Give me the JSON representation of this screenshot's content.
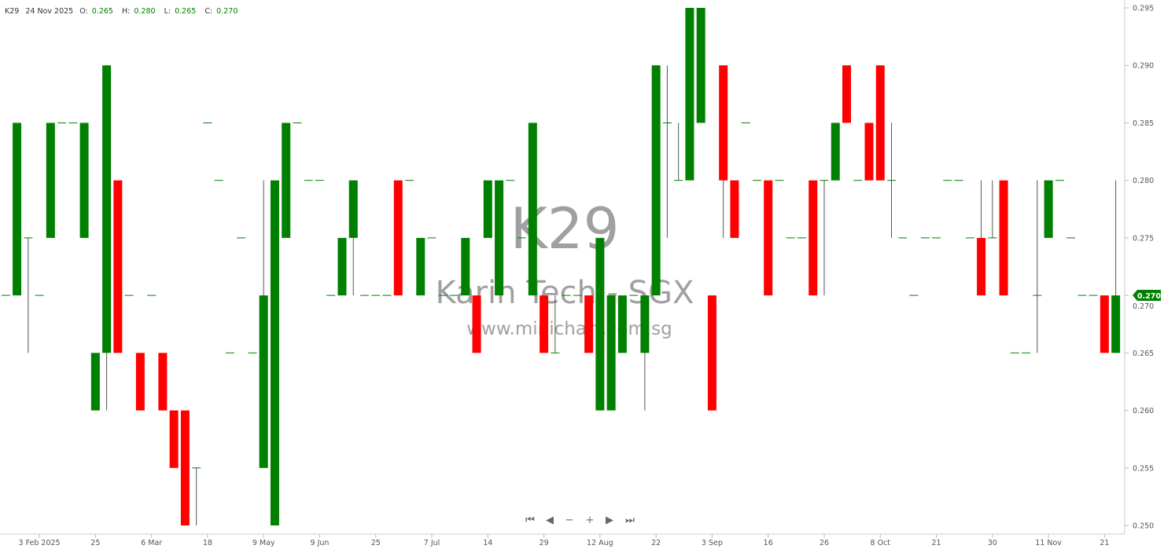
{
  "header": {
    "symbol": "K29",
    "date": "24 Nov 2025",
    "o_label": "O:",
    "o": "0.265",
    "h_label": "H:",
    "h": "0.280",
    "l_label": "L:",
    "l": "0.265",
    "c_label": "C:",
    "c": "0.270"
  },
  "watermark": {
    "symbol": "K29",
    "name": "Karin Tech - SGX",
    "site": "www.minichart.com.sg"
  },
  "navigation": {
    "first": "⏮",
    "prev": "◀",
    "zoom_out": "−",
    "zoom_in": "+",
    "next": "▶",
    "last": "⏭"
  },
  "colors": {
    "up": "#008000",
    "down": "#ff0000",
    "wick": "#555555",
    "last_price_tag": "#008000"
  },
  "chart_data": {
    "type": "candlestick",
    "title": "",
    "ylim": [
      0.25,
      0.295
    ],
    "y_ticks": [
      "0.295",
      "0.290",
      "0.285",
      "0.280",
      "0.275",
      "0.270",
      "0.265",
      "0.260",
      "0.255",
      "0.250"
    ],
    "y_axis_side": "right",
    "grid": false,
    "last_price": "0.270",
    "x_tick_labels": [
      {
        "index": 3,
        "label": "3 Feb 2025"
      },
      {
        "index": 8,
        "label": "25"
      },
      {
        "index": 13,
        "label": "6 Mar"
      },
      {
        "index": 18,
        "label": "18"
      },
      {
        "index": 23,
        "label": "9 May"
      },
      {
        "index": 28,
        "label": "9 Jun"
      },
      {
        "index": 33,
        "label": "25"
      },
      {
        "index": 38,
        "label": "7 Jul"
      },
      {
        "index": 43,
        "label": "14"
      },
      {
        "index": 48,
        "label": "29"
      },
      {
        "index": 53,
        "label": "12 Aug"
      },
      {
        "index": 58,
        "label": "22"
      },
      {
        "index": 63,
        "label": "3 Sep"
      },
      {
        "index": 68,
        "label": "16"
      },
      {
        "index": 73,
        "label": "26"
      },
      {
        "index": 78,
        "label": "8 Oct"
      },
      {
        "index": 83,
        "label": "21"
      },
      {
        "index": 88,
        "label": "30"
      },
      {
        "index": 93,
        "label": "11 Nov"
      },
      {
        "index": 98,
        "label": "21"
      }
    ],
    "ohlc_fields": [
      "open",
      "high",
      "low",
      "close"
    ],
    "candles": [
      [
        0.27,
        0.27,
        0.27,
        0.27
      ],
      [
        0.27,
        0.285,
        0.27,
        0.285
      ],
      [
        0.275,
        0.275,
        0.265,
        0.275
      ],
      [
        0.27,
        0.27,
        0.27,
        0.27
      ],
      [
        0.275,
        0.285,
        0.275,
        0.285
      ],
      [
        0.285,
        0.285,
        0.285,
        0.285
      ],
      [
        0.285,
        0.285,
        0.285,
        0.285
      ],
      [
        0.275,
        0.285,
        0.275,
        0.285
      ],
      [
        0.26,
        0.265,
        0.26,
        0.265
      ],
      [
        0.265,
        0.29,
        0.26,
        0.29
      ],
      [
        0.28,
        0.28,
        0.265,
        0.265
      ],
      [
        0.27,
        0.27,
        0.27,
        0.27
      ],
      [
        0.265,
        0.265,
        0.26,
        0.26
      ],
      [
        0.27,
        0.27,
        0.27,
        0.27
      ],
      [
        0.265,
        0.265,
        0.26,
        0.26
      ],
      [
        0.26,
        0.26,
        0.255,
        0.255
      ],
      [
        0.26,
        0.26,
        0.25,
        0.25
      ],
      [
        0.255,
        0.255,
        0.25,
        0.255
      ],
      [
        0.285,
        0.285,
        0.285,
        0.285
      ],
      [
        0.28,
        0.28,
        0.28,
        0.28
      ],
      [
        0.265,
        0.265,
        0.265,
        0.265
      ],
      [
        0.275,
        0.275,
        0.275,
        0.275
      ],
      [
        0.265,
        0.265,
        0.265,
        0.265
      ],
      [
        0.255,
        0.28,
        0.255,
        0.27
      ],
      [
        0.25,
        0.28,
        0.25,
        0.28
      ],
      [
        0.275,
        0.285,
        0.275,
        0.285
      ],
      [
        0.285,
        0.285,
        0.285,
        0.285
      ],
      [
        0.28,
        0.28,
        0.28,
        0.28
      ],
      [
        0.28,
        0.28,
        0.28,
        0.28
      ],
      [
        0.27,
        0.27,
        0.27,
        0.27
      ],
      [
        0.27,
        0.275,
        0.27,
        0.275
      ],
      [
        0.275,
        0.28,
        0.27,
        0.28
      ],
      [
        0.27,
        0.27,
        0.27,
        0.27
      ],
      [
        0.27,
        0.27,
        0.27,
        0.27
      ],
      [
        0.27,
        0.27,
        0.27,
        0.27
      ],
      [
        0.28,
        0.28,
        0.27,
        0.27
      ],
      [
        0.28,
        0.28,
        0.28,
        0.28
      ],
      [
        0.27,
        0.275,
        0.27,
        0.275
      ],
      [
        0.275,
        0.275,
        0.275,
        0.275
      ],
      [
        0.27,
        0.27,
        0.27,
        0.27
      ],
      [
        0.27,
        0.27,
        0.27,
        0.27
      ],
      [
        0.27,
        0.275,
        0.27,
        0.275
      ],
      [
        0.27,
        0.27,
        0.265,
        0.265
      ],
      [
        0.275,
        0.28,
        0.275,
        0.28
      ],
      [
        0.27,
        0.28,
        0.27,
        0.28
      ],
      [
        0.28,
        0.28,
        0.28,
        0.28
      ],
      [
        0.275,
        0.275,
        0.275,
        0.275
      ],
      [
        0.27,
        0.285,
        0.27,
        0.285
      ],
      [
        0.27,
        0.27,
        0.265,
        0.265
      ],
      [
        0.265,
        0.27,
        0.265,
        0.265
      ],
      [
        0.27,
        0.27,
        0.27,
        0.27
      ],
      [
        0.27,
        0.27,
        0.27,
        0.27
      ],
      [
        0.27,
        0.27,
        0.265,
        0.265
      ],
      [
        0.26,
        0.275,
        0.26,
        0.275
      ],
      [
        0.26,
        0.27,
        0.26,
        0.27
      ],
      [
        0.265,
        0.27,
        0.265,
        0.27
      ],
      [
        0.27,
        0.27,
        0.27,
        0.27
      ],
      [
        0.265,
        0.27,
        0.26,
        0.27
      ],
      [
        0.27,
        0.29,
        0.27,
        0.29
      ],
      [
        0.285,
        0.29,
        0.275,
        0.285
      ],
      [
        0.28,
        0.285,
        0.28,
        0.28
      ],
      [
        0.28,
        0.295,
        0.28,
        0.295
      ],
      [
        0.285,
        0.295,
        0.285,
        0.295
      ],
      [
        0.27,
        0.27,
        0.26,
        0.26
      ],
      [
        0.29,
        0.29,
        0.275,
        0.28
      ],
      [
        0.28,
        0.28,
        0.275,
        0.275
      ],
      [
        0.285,
        0.285,
        0.285,
        0.285
      ],
      [
        0.28,
        0.28,
        0.28,
        0.28
      ],
      [
        0.28,
        0.28,
        0.27,
        0.27
      ],
      [
        0.28,
        0.28,
        0.28,
        0.28
      ],
      [
        0.275,
        0.275,
        0.275,
        0.275
      ],
      [
        0.275,
        0.275,
        0.275,
        0.275
      ],
      [
        0.28,
        0.28,
        0.27,
        0.27
      ],
      [
        0.28,
        0.28,
        0.27,
        0.28
      ],
      [
        0.28,
        0.285,
        0.28,
        0.285
      ],
      [
        0.29,
        0.29,
        0.285,
        0.285
      ],
      [
        0.28,
        0.28,
        0.28,
        0.28
      ],
      [
        0.285,
        0.285,
        0.28,
        0.28
      ],
      [
        0.29,
        0.29,
        0.28,
        0.28
      ],
      [
        0.28,
        0.285,
        0.275,
        0.28
      ],
      [
        0.275,
        0.275,
        0.275,
        0.275
      ],
      [
        0.27,
        0.27,
        0.27,
        0.27
      ],
      [
        0.275,
        0.275,
        0.275,
        0.275
      ],
      [
        0.275,
        0.275,
        0.275,
        0.275
      ],
      [
        0.28,
        0.28,
        0.28,
        0.28
      ],
      [
        0.28,
        0.28,
        0.28,
        0.28
      ],
      [
        0.275,
        0.275,
        0.275,
        0.275
      ],
      [
        0.275,
        0.28,
        0.27,
        0.27
      ],
      [
        0.275,
        0.28,
        0.275,
        0.275
      ],
      [
        0.28,
        0.28,
        0.27,
        0.27
      ],
      [
        0.265,
        0.265,
        0.265,
        0.265
      ],
      [
        0.265,
        0.265,
        0.265,
        0.265
      ],
      [
        0.27,
        0.28,
        0.265,
        0.27
      ],
      [
        0.275,
        0.28,
        0.275,
        0.28
      ],
      [
        0.28,
        0.28,
        0.28,
        0.28
      ],
      [
        0.275,
        0.275,
        0.275,
        0.275
      ],
      [
        0.27,
        0.27,
        0.27,
        0.27
      ],
      [
        0.27,
        0.27,
        0.27,
        0.27
      ],
      [
        0.27,
        0.27,
        0.265,
        0.265
      ],
      [
        0.265,
        0.28,
        0.265,
        0.27
      ]
    ]
  }
}
